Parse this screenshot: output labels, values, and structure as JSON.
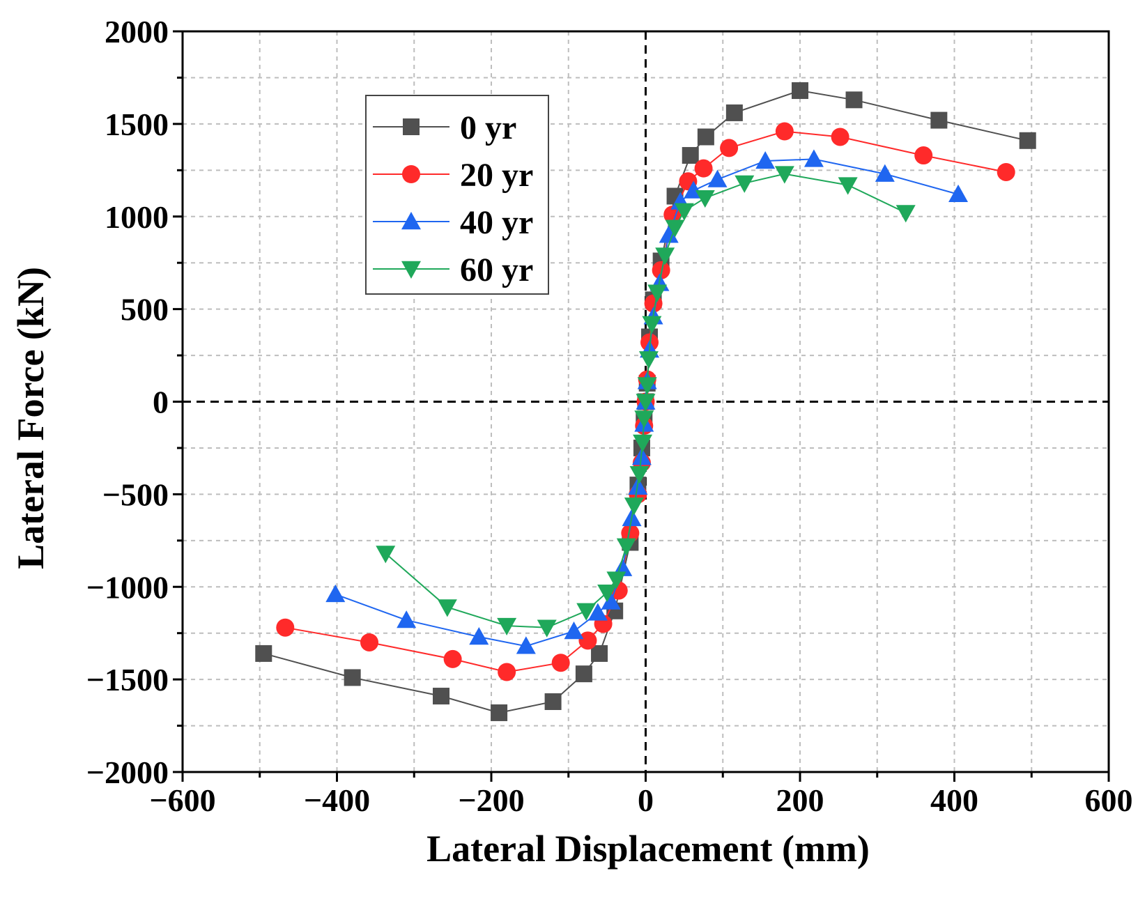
{
  "chart_data": {
    "type": "line",
    "title": "",
    "xlabel": "Lateral Displacement (mm)",
    "ylabel": "Lateral Force (kN)",
    "xlim": [
      -600,
      600
    ],
    "ylim": [
      -2000,
      2000
    ],
    "xticks": [
      -600,
      -400,
      -200,
      0,
      200,
      400,
      600
    ],
    "xtick_labels": [
      "−600",
      "−400",
      "−200",
      "0",
      "200",
      "400",
      "600"
    ],
    "yticks": [
      -2000,
      -1500,
      -1000,
      -500,
      0,
      500,
      1000,
      1500,
      2000
    ],
    "ytick_labels": [
      "−2000",
      "−1500",
      "−1000",
      "−500",
      "0",
      "500",
      "1000",
      "1500",
      "2000"
    ],
    "grid": true,
    "legend_position": "top-left",
    "series": [
      {
        "name": "0 yr",
        "color": "#505050",
        "marker": "square",
        "x": [
          -495,
          -380,
          -265,
          -190,
          -120,
          -80,
          -60,
          -40,
          -20,
          -10,
          -5,
          -2,
          0,
          2,
          5,
          10,
          20,
          38,
          58,
          78,
          115,
          200,
          270,
          380,
          495
        ],
        "y": [
          -1360,
          -1490,
          -1590,
          -1680,
          -1620,
          -1470,
          -1360,
          -1130,
          -760,
          -450,
          -250,
          -100,
          0,
          100,
          350,
          550,
          760,
          1110,
          1330,
          1430,
          1560,
          1680,
          1630,
          1520,
          1410
        ]
      },
      {
        "name": "20 yr",
        "color": "#ff2a2a",
        "marker": "circle",
        "x": [
          -467,
          -358,
          -250,
          -180,
          -110,
          -75,
          -55,
          -35,
          -20,
          -10,
          -5,
          -2,
          0,
          2,
          5,
          10,
          20,
          35,
          55,
          75,
          108,
          180,
          252,
          360,
          467
        ],
        "y": [
          -1220,
          -1300,
          -1390,
          -1460,
          -1410,
          -1290,
          -1200,
          -1020,
          -710,
          -500,
          -330,
          -130,
          0,
          120,
          320,
          530,
          710,
          1010,
          1190,
          1260,
          1370,
          1460,
          1430,
          1330,
          1240
        ]
      },
      {
        "name": "40 yr",
        "color": "#1f66f0",
        "marker": "triangle-up",
        "x": [
          -402,
          -310,
          -216,
          -155,
          -93,
          -62,
          -45,
          -30,
          -18,
          -10,
          -5,
          -2,
          0,
          2,
          5,
          10,
          18,
          30,
          45,
          62,
          93,
          155,
          218,
          310,
          405
        ],
        "y": [
          -1040,
          -1180,
          -1270,
          -1320,
          -1240,
          -1140,
          -1080,
          -900,
          -630,
          -460,
          -300,
          -120,
          0,
          110,
          280,
          460,
          640,
          900,
          1080,
          1140,
          1200,
          1300,
          1310,
          1230,
          1120
        ]
      },
      {
        "name": "60 yr",
        "color": "#1fa85a",
        "marker": "triangle-down",
        "x": [
          -337,
          -257,
          -180,
          -128,
          -77,
          -50,
          -38,
          -25,
          -15,
          -8,
          -4,
          -2,
          0,
          2,
          4,
          8,
          15,
          25,
          38,
          50,
          77,
          128,
          180,
          262,
          337
        ],
        "y": [
          -820,
          -1110,
          -1210,
          -1220,
          -1130,
          -1030,
          -960,
          -780,
          -560,
          -390,
          -220,
          -90,
          0,
          90,
          230,
          420,
          590,
          790,
          940,
          1030,
          1100,
          1180,
          1230,
          1170,
          1020
        ]
      }
    ]
  }
}
